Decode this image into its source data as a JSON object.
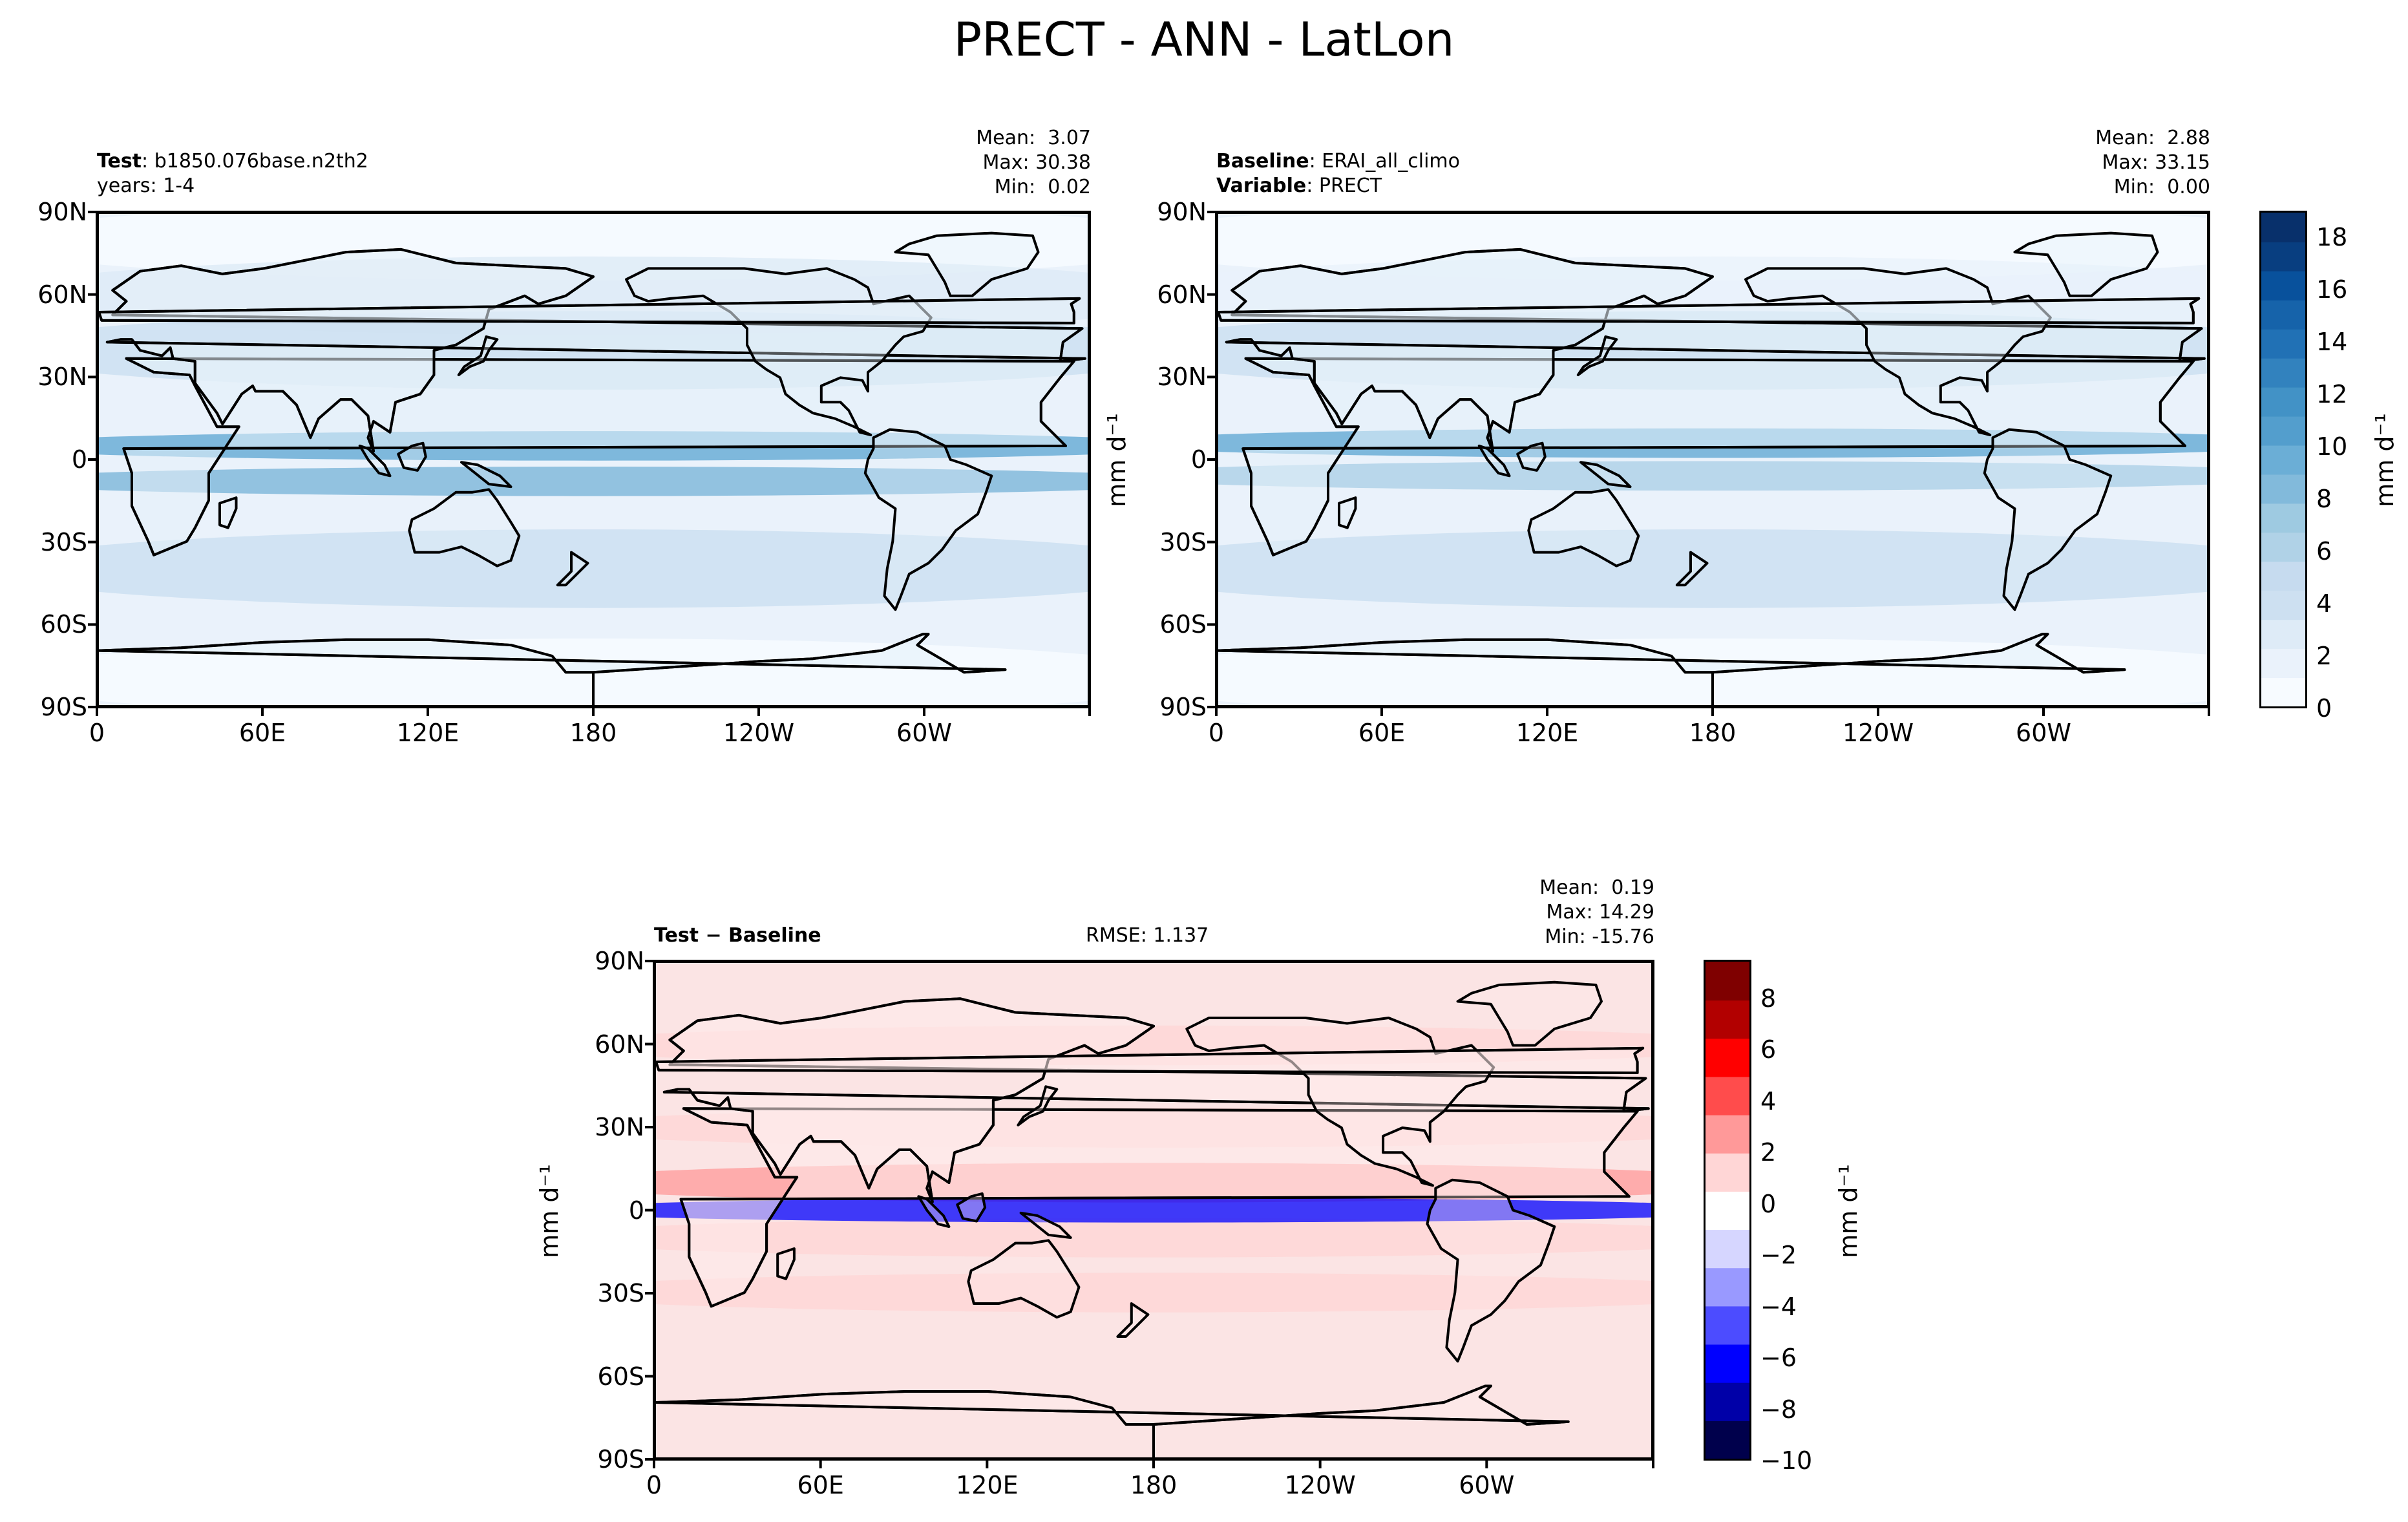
{
  "figure": {
    "title": "PRECT - ANN - LatLon"
  },
  "colors": {
    "blues": [
      "#f7fbff",
      "#eaf2fb",
      "#deebf7",
      "#cde0f1",
      "#c6dbef",
      "#b0d2e7",
      "#9ecae1",
      "#82badb",
      "#6baed6",
      "#539ecd",
      "#4292c6",
      "#3282be",
      "#2171b5",
      "#1663aa",
      "#08519c",
      "#083e80",
      "#08306b"
    ],
    "diff": [
      "#00004c",
      "#0000a8",
      "#0000ff",
      "#4c4cff",
      "#9999ff",
      "#d6d6ff",
      "#ffffff",
      "#ffd6d6",
      "#ff9999",
      "#ff4c4c",
      "#ff0000",
      "#b20000",
      "#7f0000"
    ]
  },
  "panels": {
    "test": {
      "label_bold": "Test",
      "label_sep": ": ",
      "label_value": "b1850.076base.n2th2",
      "line2": "years: 1-4",
      "stats": {
        "mean": "Mean:  3.07",
        "max": "Max: 30.38",
        "min": "Min:  0.02"
      }
    },
    "baseline": {
      "label_bold": "Baseline",
      "label_sep": ": ",
      "label_value": "ERAI_all_climo",
      "line2_bold": "Variable",
      "line2_sep": ": ",
      "line2_value": "PRECT",
      "stats": {
        "mean": "Mean:  2.88",
        "max": "Max: 33.15",
        "min": "Min:  0.00"
      },
      "ylabel": "mm d⁻¹"
    },
    "diff": {
      "label_bold": "Test − Baseline",
      "rmse": "RMSE: 1.137",
      "stats": {
        "mean": "Mean:  0.19",
        "max": "Max: 14.29",
        "min": "Min: -15.76"
      },
      "ylabel": "mm d⁻¹"
    }
  },
  "axes": {
    "lat_ticks": [
      "90N",
      "60N",
      "30N",
      "0",
      "30S",
      "60S",
      "90S"
    ],
    "lon_ticks": [
      "0",
      "60E",
      "120E",
      "180",
      "120W",
      "60W"
    ]
  },
  "colorbars": {
    "main": {
      "ticks": [
        "0",
        "2",
        "4",
        "6",
        "8",
        "10",
        "12",
        "14",
        "16",
        "18"
      ],
      "label": "mm d⁻¹",
      "range": [
        0,
        19
      ]
    },
    "diff": {
      "ticks": [
        "−10",
        "−8",
        "−6",
        "−4",
        "−2",
        "0",
        "2",
        "4",
        "6",
        "8"
      ],
      "label": "mm d⁻¹",
      "range": [
        -10,
        9.5
      ]
    }
  },
  "chart_data": [
    {
      "type": "heatmap",
      "title": "",
      "subtitle": "Test: b1850.076base.n2th2, years: 1-4",
      "field": "PRECT",
      "units": "mm d⁻¹",
      "lat_range": [
        -90,
        90
      ],
      "lon_range": [
        0,
        360
      ],
      "stats": {
        "mean": 3.07,
        "max": 30.38,
        "min": 0.02
      },
      "zones": [
        {
          "lat": 5,
          "value": 10
        },
        {
          "lat": -8,
          "value": 8
        },
        {
          "lat": 40,
          "value": 4
        },
        {
          "lat": -40,
          "value": 4
        },
        {
          "lat": 60,
          "value": 2.5
        },
        {
          "lat": 80,
          "value": 0.5
        },
        {
          "lat": -80,
          "value": 0.5
        }
      ]
    },
    {
      "type": "heatmap",
      "title": "",
      "subtitle": "Baseline: ERAI_all_climo, Variable: PRECT",
      "field": "PRECT",
      "units": "mm d⁻¹",
      "lat_range": [
        -90,
        90
      ],
      "lon_range": [
        0,
        360
      ],
      "stats": {
        "mean": 2.88,
        "max": 33.15,
        "min": 0.0
      },
      "zones": [
        {
          "lat": 6,
          "value": 9
        },
        {
          "lat": -6,
          "value": 6
        },
        {
          "lat": 40,
          "value": 3.5
        },
        {
          "lat": -40,
          "value": 3.5
        },
        {
          "lat": 60,
          "value": 2
        },
        {
          "lat": 80,
          "value": 0.3
        },
        {
          "lat": -80,
          "value": 0.3
        }
      ]
    },
    {
      "type": "heatmap",
      "title": "",
      "subtitle": "Test − Baseline",
      "field": "PRECT difference",
      "units": "mm d⁻¹",
      "lat_range": [
        -90,
        90
      ],
      "lon_range": [
        0,
        360
      ],
      "rmse": 1.137,
      "stats": {
        "mean": 0.19,
        "max": 14.29,
        "min": -15.76
      },
      "zones": [
        {
          "lat": 0,
          "value": -6
        },
        {
          "lat": 10,
          "value": 2
        },
        {
          "lat": -10,
          "value": 1.5
        },
        {
          "lat": 30,
          "value": 1
        },
        {
          "lat": -30,
          "value": 1
        },
        {
          "lat": 60,
          "value": 0.5
        }
      ]
    }
  ]
}
